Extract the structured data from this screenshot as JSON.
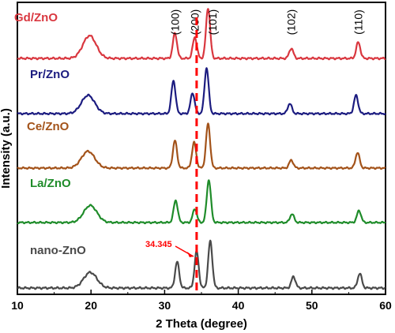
{
  "chart_data": {
    "type": "line",
    "xlabel": "2 Theta (degree)",
    "ylabel": "Intensity (a.u.)",
    "xlim": [
      10,
      60
    ],
    "x_ticks": [
      "10",
      "20",
      "30",
      "40",
      "50",
      "60"
    ],
    "grid": false,
    "legend": "labels placed left of each stacked trace",
    "series": [
      {
        "name": "Gd/ZnO",
        "color": "#d9373f",
        "peaks": [
          {
            "x": 19.8,
            "h": 0.45
          },
          {
            "x": 31.4,
            "h": 0.5
          },
          {
            "x": 34.1,
            "h": 0.42
          },
          {
            "x": 35.9,
            "h": 1.0
          },
          {
            "x": 47.2,
            "h": 0.2
          },
          {
            "x": 56.3,
            "h": 0.32
          }
        ]
      },
      {
        "name": "Pr/ZnO",
        "color": "#1c1c80",
        "peaks": [
          {
            "x": 19.6,
            "h": 0.4
          },
          {
            "x": 31.2,
            "h": 0.72
          },
          {
            "x": 33.8,
            "h": 0.45
          },
          {
            "x": 35.7,
            "h": 1.0
          },
          {
            "x": 47.0,
            "h": 0.22
          },
          {
            "x": 56.0,
            "h": 0.4
          }
        ]
      },
      {
        "name": "Ce/ZnO",
        "color": "#a3531a",
        "peaks": [
          {
            "x": 19.6,
            "h": 0.38
          },
          {
            "x": 31.4,
            "h": 0.62
          },
          {
            "x": 34.0,
            "h": 0.58
          },
          {
            "x": 35.9,
            "h": 1.0
          },
          {
            "x": 47.2,
            "h": 0.18
          },
          {
            "x": 56.2,
            "h": 0.35
          }
        ]
      },
      {
        "name": "La/ZnO",
        "color": "#1f8c2a",
        "peaks": [
          {
            "x": 19.9,
            "h": 0.4
          },
          {
            "x": 31.5,
            "h": 0.52
          },
          {
            "x": 34.1,
            "h": 0.32
          },
          {
            "x": 36.0,
            "h": 1.0
          },
          {
            "x": 47.3,
            "h": 0.2
          },
          {
            "x": 56.4,
            "h": 0.28
          }
        ]
      },
      {
        "name": "nano-ZnO",
        "color": "#4a4a4a",
        "peaks": [
          {
            "x": 19.9,
            "h": 0.3
          },
          {
            "x": 31.7,
            "h": 0.5
          },
          {
            "x": 34.345,
            "h": 0.7
          },
          {
            "x": 36.2,
            "h": 0.9
          },
          {
            "x": 47.5,
            "h": 0.22
          },
          {
            "x": 56.5,
            "h": 0.28
          }
        ]
      }
    ],
    "hkl_labels": [
      {
        "text": "(100)",
        "x": 31.5
      },
      {
        "text": "(200)",
        "x": 34.2
      },
      {
        "text": "(101)",
        "x": 36.6
      },
      {
        "text": "(102)",
        "x": 47.3
      },
      {
        "text": "(110)",
        "x": 56.4
      }
    ],
    "reference_line": {
      "x": 34.345,
      "color": "#ff0000",
      "style": "dashed"
    },
    "annotations": [
      {
        "text": "34.345",
        "x": 34.345,
        "color": "#ff0000"
      }
    ]
  }
}
